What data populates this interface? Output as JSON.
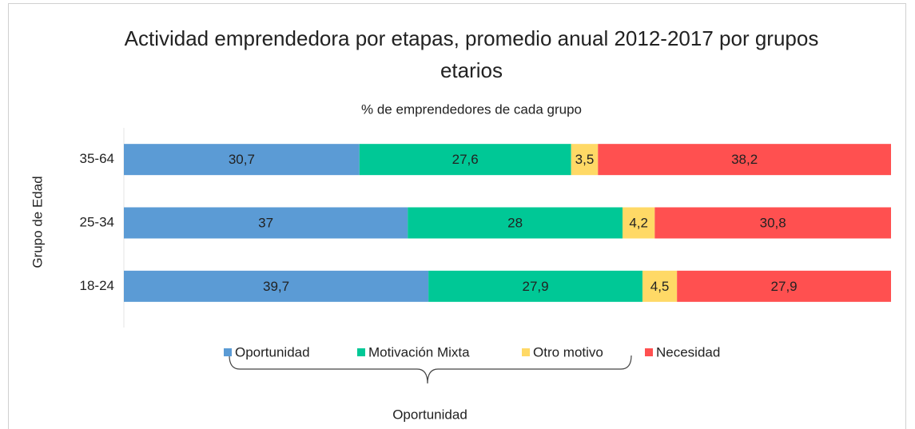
{
  "chart_data": {
    "type": "stacked_barh",
    "title": "Actividad emprendedora por etapas, promedio anual 2012-2017 por grupos etarios",
    "subtitle": "% de emprendedores de cada grupo",
    "y_label": "Grupo de Edad",
    "categories": [
      "35-64",
      "25-34",
      "18-24"
    ],
    "series": [
      {
        "name": "Oportunidad",
        "color": "#5b9bd5",
        "values": [
          30.7,
          37,
          39.7
        ],
        "value_labels": [
          "30,7",
          "37",
          "39,7"
        ]
      },
      {
        "name": "Motivación Mixta",
        "color": "#00c896",
        "values": [
          27.6,
          28,
          27.9
        ],
        "value_labels": [
          "27,6",
          "28",
          "27,9"
        ]
      },
      {
        "name": "Otro motivo",
        "color": "#ffd966",
        "values": [
          3.5,
          4.2,
          4.5
        ],
        "value_labels": [
          "3,5",
          "4,2",
          "4,5"
        ]
      },
      {
        "name": "Necesidad",
        "color": "#ff5050",
        "values": [
          38.2,
          30.8,
          27.9
        ],
        "value_labels": [
          "38,2",
          "30,8",
          "27,9"
        ]
      }
    ],
    "legend": "bottom",
    "annotation": "Oportunidad"
  }
}
